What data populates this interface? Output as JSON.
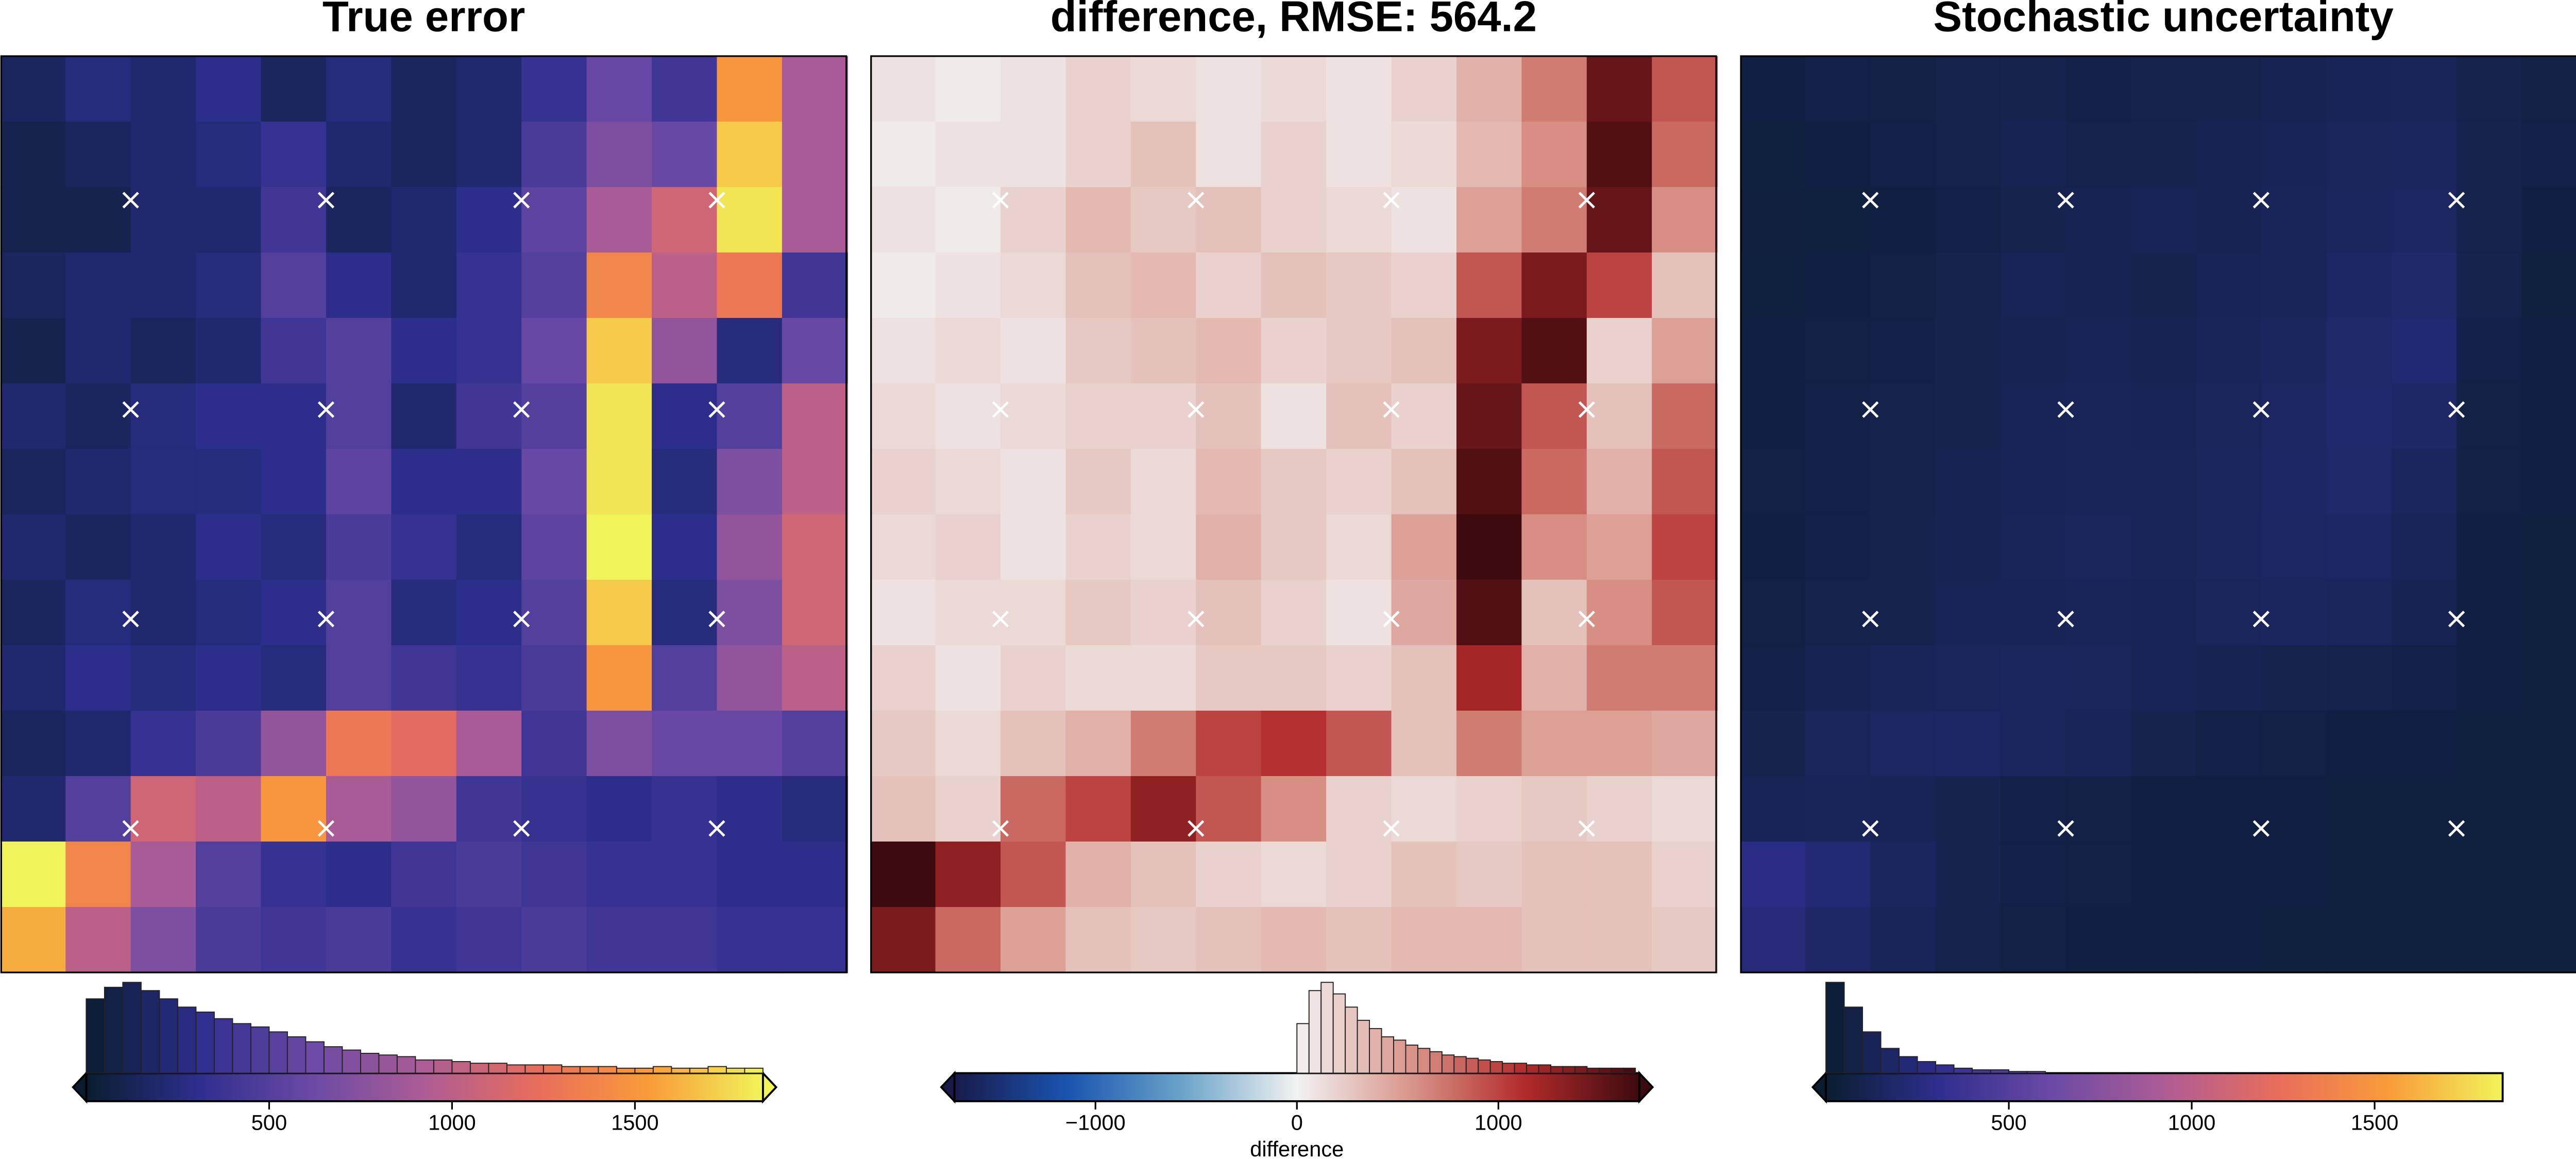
{
  "chart_data": [
    {
      "type": "heatmap",
      "title": "True error",
      "zlim": [
        0,
        1850
      ],
      "colormap": [
        "#0a1d30",
        "#2e2e8e",
        "#6a4aa5",
        "#ad5c95",
        "#e86d5c",
        "#f99c3a",
        "#f1f35a"
      ],
      "z": [
        [
          150,
          250,
          200,
          300,
          150,
          250,
          150,
          200,
          350,
          600,
          400,
          1500,
          900
        ],
        [
          100,
          150,
          200,
          250,
          350,
          200,
          150,
          200,
          450,
          700,
          600,
          1700,
          900
        ],
        [
          100,
          100,
          200,
          200,
          400,
          150,
          200,
          300,
          550,
          900,
          1100,
          1800,
          900
        ],
        [
          150,
          200,
          200,
          250,
          500,
          300,
          200,
          350,
          500,
          1400,
          1000,
          1300,
          400
        ],
        [
          100,
          200,
          150,
          200,
          400,
          500,
          300,
          350,
          600,
          1700,
          800,
          250,
          600
        ],
        [
          200,
          150,
          250,
          300,
          300,
          500,
          200,
          400,
          500,
          1800,
          300,
          500,
          1000
        ],
        [
          150,
          200,
          250,
          250,
          300,
          550,
          300,
          300,
          600,
          1800,
          250,
          700,
          1000
        ],
        [
          200,
          150,
          200,
          300,
          250,
          450,
          350,
          250,
          550,
          1850,
          300,
          800,
          1100
        ],
        [
          150,
          250,
          200,
          250,
          300,
          500,
          250,
          300,
          500,
          1700,
          250,
          700,
          1100
        ],
        [
          200,
          300,
          250,
          300,
          250,
          500,
          400,
          350,
          450,
          1500,
          500,
          800,
          1000
        ],
        [
          150,
          200,
          350,
          450,
          800,
          1300,
          1200,
          900,
          400,
          700,
          600,
          600,
          500
        ],
        [
          200,
          500,
          1100,
          1000,
          1500,
          900,
          800,
          400,
          350,
          300,
          350,
          300,
          250
        ],
        [
          1850,
          1400,
          900,
          500,
          350,
          300,
          400,
          450,
          400,
          350,
          350,
          300,
          300
        ],
        [
          1600,
          1000,
          700,
          450,
          400,
          450,
          350,
          400,
          450,
          400,
          400,
          350,
          350
        ]
      ],
      "markers": {
        "x": [
          2,
          5,
          8,
          11
        ],
        "y": [
          2.2,
          5.4,
          8.6,
          11.8
        ]
      },
      "colorbar": {
        "ticks": [
          500,
          1000,
          1500
        ],
        "extend": "both"
      },
      "hist": {
        "bins": [
          0,
          50,
          100,
          150,
          200,
          250,
          300,
          350,
          400,
          450,
          500,
          550,
          600,
          650,
          700,
          750,
          800,
          850,
          900,
          950,
          1000,
          1050,
          1100,
          1150,
          1200,
          1250,
          1300,
          1350,
          1400,
          1450,
          1500,
          1550,
          1600,
          1650,
          1700,
          1750,
          1800,
          1850
        ],
        "counts": [
          45,
          52,
          55,
          50,
          45,
          40,
          37,
          33,
          30,
          28,
          25,
          22,
          19,
          16,
          14,
          12,
          11,
          10,
          8,
          8,
          7,
          6,
          6,
          5,
          5,
          5,
          4,
          4,
          4,
          3,
          3,
          4,
          3,
          3,
          4,
          3,
          3
        ]
      }
    },
    {
      "type": "heatmap",
      "title": "difference, RMSE: 564.2",
      "zlim": [
        -1700,
        1700
      ],
      "colormap": [
        "#191a4a",
        "#1a55b0",
        "#6ba4c9",
        "#f2f2f2",
        "#d9958a",
        "#b22a2a",
        "#3d0a10"
      ],
      "z": [
        [
          100,
          50,
          100,
          200,
          150,
          100,
          150,
          100,
          200,
          400,
          700,
          1500,
          900
        ],
        [
          50,
          100,
          100,
          200,
          300,
          100,
          200,
          100,
          150,
          350,
          600,
          1600,
          800
        ],
        [
          100,
          50,
          200,
          350,
          250,
          300,
          200,
          150,
          100,
          500,
          700,
          1500,
          600
        ],
        [
          50,
          100,
          150,
          300,
          350,
          200,
          300,
          250,
          200,
          900,
          1400,
          1000,
          300
        ],
        [
          100,
          150,
          100,
          250,
          300,
          350,
          200,
          250,
          300,
          1400,
          1600,
          200,
          500
        ],
        [
          150,
          100,
          150,
          200,
          200,
          300,
          100,
          300,
          200,
          1500,
          900,
          300,
          800
        ],
        [
          200,
          150,
          100,
          250,
          150,
          350,
          250,
          200,
          300,
          1600,
          800,
          400,
          900
        ],
        [
          150,
          200,
          100,
          200,
          150,
          400,
          250,
          150,
          500,
          1700,
          600,
          500,
          1000
        ],
        [
          100,
          150,
          150,
          250,
          200,
          300,
          200,
          100,
          450,
          1600,
          300,
          600,
          900
        ],
        [
          200,
          100,
          200,
          150,
          150,
          250,
          250,
          200,
          300,
          1200,
          400,
          700,
          700
        ],
        [
          250,
          150,
          300,
          400,
          700,
          1000,
          1100,
          900,
          300,
          700,
          500,
          500,
          450
        ],
        [
          300,
          200,
          800,
          1000,
          1300,
          900,
          600,
          200,
          150,
          200,
          250,
          200,
          150
        ],
        [
          1700,
          1300,
          900,
          400,
          300,
          200,
          150,
          200,
          300,
          250,
          300,
          300,
          200
        ],
        [
          1400,
          800,
          500,
          300,
          250,
          300,
          350,
          300,
          350,
          350,
          300,
          300,
          250
        ]
      ],
      "markers": {
        "x": [
          2,
          5,
          8,
          11
        ],
        "y": [
          2.2,
          5.4,
          8.6,
          11.8
        ]
      },
      "colorbar": {
        "ticks": [
          {
            "value": -1000,
            "label": "−1000"
          },
          0,
          1000
        ],
        "extend": "both",
        "label": "difference"
      },
      "hist": {
        "bins": [
          0,
          60,
          120,
          180,
          240,
          300,
          360,
          420,
          480,
          540,
          600,
          660,
          720,
          780,
          840,
          900,
          960,
          1020,
          1080,
          1140,
          1200,
          1260,
          1320,
          1380,
          1440,
          1500,
          1560,
          1620,
          1680
        ],
        "counts": [
          30,
          50,
          55,
          48,
          40,
          32,
          27,
          22,
          20,
          17,
          15,
          13,
          11,
          10,
          9,
          8,
          7,
          6,
          6,
          5,
          5,
          4,
          4,
          4,
          3,
          3,
          3,
          3
        ]
      }
    },
    {
      "type": "heatmap",
      "title": "Stochastic uncertainty",
      "zlim": [
        0,
        1850
      ],
      "colormap": [
        "#0a1d30",
        "#2e2e8e",
        "#6a4aa5",
        "#ad5c95",
        "#e86d5c",
        "#f99c3a",
        "#f1f35a"
      ],
      "z": [
        [
          60,
          80,
          70,
          90,
          100,
          80,
          90,
          100,
          110,
          120,
          130,
          90,
          70
        ],
        [
          50,
          60,
          80,
          90,
          110,
          90,
          100,
          110,
          120,
          140,
          150,
          100,
          80
        ],
        [
          40,
          50,
          60,
          80,
          100,
          110,
          120,
          110,
          130,
          150,
          160,
          90,
          60
        ],
        [
          50,
          60,
          70,
          90,
          120,
          110,
          100,
          120,
          130,
          170,
          190,
          100,
          50
        ],
        [
          60,
          70,
          80,
          100,
          110,
          120,
          110,
          130,
          150,
          190,
          210,
          80,
          60
        ],
        [
          60,
          80,
          90,
          100,
          120,
          130,
          120,
          140,
          160,
          200,
          180,
          70,
          60
        ],
        [
          70,
          80,
          90,
          110,
          120,
          130,
          130,
          150,
          170,
          190,
          150,
          70,
          60
        ],
        [
          60,
          80,
          100,
          110,
          130,
          140,
          130,
          150,
          160,
          170,
          130,
          60,
          50
        ],
        [
          70,
          90,
          100,
          120,
          120,
          130,
          120,
          140,
          150,
          140,
          110,
          60,
          50
        ],
        [
          80,
          110,
          130,
          140,
          150,
          140,
          120,
          110,
          100,
          90,
          80,
          60,
          50
        ],
        [
          100,
          140,
          160,
          170,
          150,
          130,
          100,
          80,
          70,
          60,
          60,
          50,
          50
        ],
        [
          120,
          130,
          120,
          100,
          80,
          70,
          60,
          60,
          60,
          50,
          50,
          50,
          50
        ],
        [
          280,
          220,
          150,
          100,
          80,
          70,
          60,
          60,
          60,
          50,
          50,
          50,
          50
        ],
        [
          240,
          180,
          130,
          90,
          70,
          60,
          60,
          60,
          50,
          50,
          50,
          50,
          50
        ]
      ],
      "markers": {
        "x": [
          2,
          5,
          8,
          11
        ],
        "y": [
          2.2,
          5.4,
          8.6,
          11.8
        ]
      },
      "colorbar": {
        "ticks": [
          500,
          1000,
          1500
        ],
        "extend": "min"
      },
      "hist": {
        "bins": [
          0,
          50,
          100,
          150,
          200,
          250,
          300,
          350,
          400,
          450,
          500,
          550,
          600
        ],
        "counts": [
          55,
          40,
          25,
          15,
          10,
          7,
          5,
          3,
          2,
          2,
          1,
          1
        ]
      }
    }
  ]
}
